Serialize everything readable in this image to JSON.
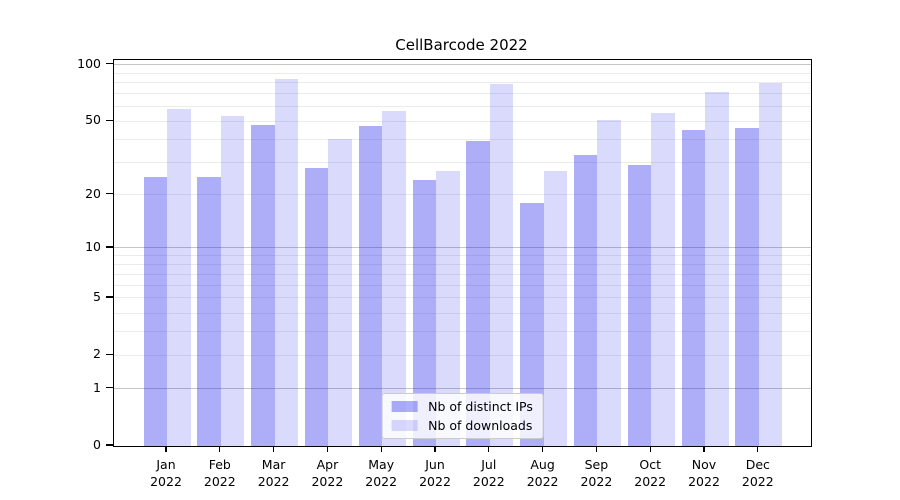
{
  "chart": {
    "title": "CellBarcode 2022",
    "chart_data": {
      "type": "bar",
      "categories": [
        "Jan",
        "Feb",
        "Mar",
        "Apr",
        "May",
        "Jun",
        "Jul",
        "Aug",
        "Sep",
        "Oct",
        "Nov",
        "Dec"
      ],
      "year_label": "2022",
      "series": [
        {
          "name": "Nb of distinct IPs",
          "color": "rgba(20,20,235,0.35)",
          "values": [
            25,
            25,
            48,
            28,
            47,
            24,
            39,
            18,
            33,
            29,
            45,
            46
          ]
        },
        {
          "name": "Nb of downloads",
          "color": "rgba(20,20,235,0.155)",
          "values": [
            58,
            53,
            84,
            40,
            57,
            27,
            79,
            27,
            51,
            55,
            72,
            80
          ]
        }
      ],
      "title": "CellBarcode 2022",
      "xlabel": "",
      "ylabel": "",
      "y_scale": "log1p",
      "ylim": [
        0,
        106
      ],
      "y_ticks": [
        0,
        1,
        2,
        5,
        10,
        20,
        50,
        100
      ],
      "y_major_gridlines": [
        1,
        10,
        100
      ],
      "y_minor_gridlines": [
        2,
        3,
        4,
        5,
        6,
        7,
        8,
        9,
        20,
        30,
        40,
        50,
        60,
        70,
        80,
        90
      ],
      "grid": "on",
      "legend_position": "lower center"
    },
    "colors": {
      "bar_distinct_ips": "rgba(20,20,235,0.35)",
      "bar_downloads": "rgba(20,20,235,0.155)",
      "major_grid": "#c6c6c6",
      "minor_grid": "#ebebeb",
      "spine": "#000000"
    }
  }
}
